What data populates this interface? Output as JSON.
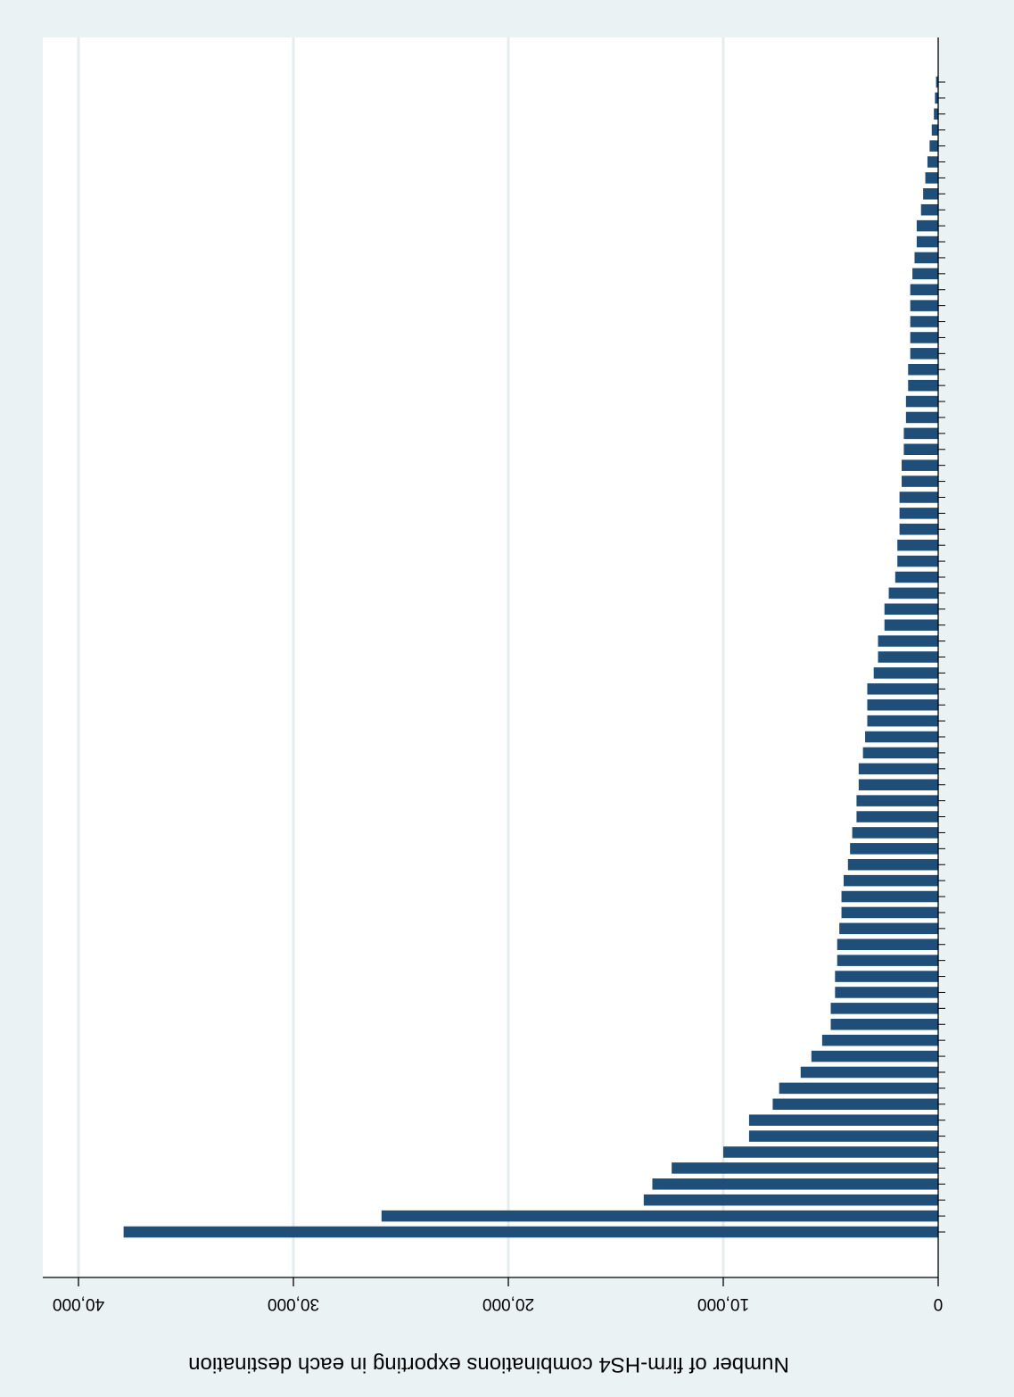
{
  "chart_data": {
    "type": "bar",
    "orientation": "horizontal-bars-rotated-180",
    "xlabel": "Number of firm-HS4 combinations exporting in each destination",
    "xlim": [
      0,
      40000
    ],
    "xticks": [
      0,
      10000,
      20000,
      30000,
      40000
    ],
    "xtick_labels": [
      "0",
      "10,000",
      "20,000",
      "30,000",
      "40,000"
    ],
    "grid": true,
    "bar_color": "#1f4e79",
    "plot_background": "#ffffff",
    "outer_background": "#eaf2f3",
    "category_labels_legible": false,
    "values": [
      37900,
      25900,
      13700,
      13300,
      12400,
      10000,
      8800,
      8800,
      7700,
      7400,
      6400,
      5900,
      5400,
      5000,
      5000,
      4800,
      4800,
      4700,
      4700,
      4600,
      4500,
      4500,
      4400,
      4200,
      4100,
      4000,
      3800,
      3800,
      3700,
      3700,
      3500,
      3400,
      3300,
      3300,
      3300,
      3000,
      2800,
      2800,
      2500,
      2500,
      2300,
      2000,
      1900,
      1900,
      1800,
      1800,
      1800,
      1700,
      1700,
      1600,
      1600,
      1500,
      1500,
      1400,
      1400,
      1300,
      1300,
      1300,
      1300,
      1300,
      1200,
      1100,
      1000,
      1000,
      800,
      700,
      600,
      500,
      400,
      300,
      200,
      150,
      100
    ]
  }
}
